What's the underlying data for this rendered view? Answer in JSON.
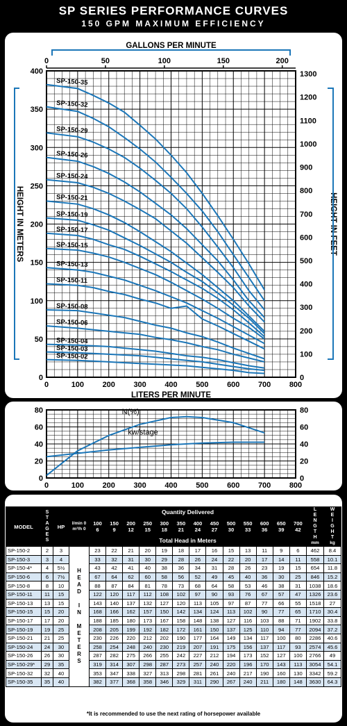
{
  "header": {
    "title": "SP SERIES PERFORMANCE CURVES",
    "subtitle": "150 GPM MAXIMUM EFFICIENCY"
  },
  "chart_data": [
    {
      "type": "line",
      "x_label_bottom": "LITERS PER MINUTE",
      "x_label_top": "GALLONS PER MINUTE",
      "y_label_left": "HEIGHT IN METERS",
      "y_label_right": "HEIGHT IN FEET",
      "x_ticks_bottom": [
        "0",
        "100",
        "200",
        "300",
        "400",
        "500",
        "600",
        "700",
        "800"
      ],
      "x_ticks_top": [
        "0",
        "50",
        "100",
        "150",
        "200"
      ],
      "y_ticks_left": [
        "0",
        "50",
        "100",
        "150",
        "200",
        "250",
        "300",
        "350",
        "400"
      ],
      "y_ticks_right": [
        "0",
        "100",
        "200",
        "300",
        "400",
        "500",
        "600",
        "700",
        "800",
        "900",
        "1000",
        "1100",
        "1200",
        "1300"
      ],
      "xlim": [
        0,
        800
      ],
      "ylim": [
        0,
        400
      ],
      "x": [
        0,
        100,
        150,
        200,
        250,
        300,
        350,
        400,
        450,
        500,
        550,
        600,
        650,
        700
      ],
      "series": [
        {
          "name": "SP-150-35",
          "values": [
            382,
            377,
            368,
            358,
            346,
            329,
            311,
            290,
            267,
            240,
            211,
            180,
            148,
            114
          ]
        },
        {
          "name": "SP-150-32",
          "values": [
            353,
            347,
            338,
            327,
            313,
            298,
            281,
            261,
            240,
            217,
            190,
            160,
            130,
            100
          ]
        },
        {
          "name": "SP-150-29",
          "values": [
            319,
            314,
            307,
            298,
            287,
            273,
            257,
            240,
            220,
            196,
            170,
            143,
            113,
            88
          ]
        },
        {
          "name": "SP-150-26",
          "values": [
            287,
            282,
            275,
            266,
            255,
            242,
            227,
            212,
            194,
            173,
            152,
            127,
            100,
            78
          ]
        },
        {
          "name": "SP-150-24",
          "values": [
            258,
            254,
            248,
            240,
            230,
            219,
            207,
            191,
            175,
            156,
            137,
            117,
            93,
            72
          ]
        },
        {
          "name": "SP-150-21",
          "values": [
            230,
            226,
            220,
            212,
            202,
            190,
            177,
            164,
            149,
            134,
            117,
            100,
            80,
            60
          ]
        },
        {
          "name": "SP-150-19",
          "values": [
            208,
            205,
            199,
            192,
            182,
            172,
            161,
            150,
            137,
            125,
            110,
            94,
            77,
            57
          ]
        },
        {
          "name": "SP-150-17",
          "values": [
            188,
            185,
            180,
            173,
            167,
            158,
            148,
            138,
            127,
            116,
            103,
            88,
            71,
            53
          ]
        },
        {
          "name": "SP-150-15",
          "values": [
            168,
            166,
            162,
            157,
            150,
            142,
            134,
            124,
            113,
            102,
            90,
            77,
            65,
            50
          ]
        },
        {
          "name": "SP-150-13",
          "values": [
            143,
            140,
            137,
            132,
            127,
            120,
            113,
            105,
            97,
            87,
            77,
            66,
            55,
            44
          ]
        },
        {
          "name": "SP-150-11",
          "values": [
            122,
            120,
            117,
            112,
            108,
            102,
            97,
            90,
            93,
            76,
            67,
            57,
            47,
            37
          ]
        },
        {
          "name": "SP-150-08",
          "values": [
            88,
            87,
            84,
            81,
            78,
            73,
            68,
            64,
            58,
            53,
            46,
            38,
            31,
            24
          ]
        },
        {
          "name": "SP-150-06",
          "values": [
            67,
            64,
            62,
            60,
            58,
            56,
            52,
            49,
            45,
            40,
            36,
            30,
            25,
            20
          ]
        },
        {
          "name": "SP-150-04",
          "values": [
            43,
            42,
            41,
            40,
            38,
            36,
            34,
            31,
            28,
            26,
            23,
            19,
            15,
            12
          ]
        },
        {
          "name": "SP-150-03",
          "values": [
            33,
            32,
            31,
            30,
            29,
            28,
            26,
            24,
            22,
            20,
            17,
            14,
            11,
            9
          ]
        },
        {
          "name": "SP-150-02",
          "values": [
            23,
            22,
            21,
            20,
            19,
            18,
            17,
            16,
            15,
            13,
            11,
            9,
            6,
            5
          ]
        }
      ]
    },
    {
      "type": "line",
      "x_ticks": [
        "0",
        "100",
        "200",
        "300",
        "400",
        "500",
        "600",
        "700",
        "800"
      ],
      "y_ticks_left": [
        "0",
        "20",
        "40",
        "60",
        "80"
      ],
      "y_ticks_right": [
        "0",
        "20",
        "40",
        "60",
        "80"
      ],
      "xlim": [
        0,
        800
      ],
      "ylim": [
        0,
        80
      ],
      "series": [
        {
          "name": "N(%)",
          "x": [
            0,
            100,
            200,
            300,
            400,
            450,
            500,
            600,
            700
          ],
          "values": [
            3,
            32,
            50,
            63,
            71,
            72,
            71,
            65,
            53
          ]
        },
        {
          "name": "kw/stage",
          "x": [
            0,
            100,
            200,
            300,
            400,
            500,
            600,
            700
          ],
          "values": [
            25,
            29,
            33,
            36,
            39,
            41,
            42,
            42
          ]
        }
      ]
    },
    {
      "type": "table",
      "headers": {
        "model": "MODEL",
        "stages": "STAGES",
        "hp": "HP",
        "quantity": "Quantity Delivered",
        "unit1": "l/min 0",
        "unit2": "m³/h 0",
        "lpm": [
          "100",
          "150",
          "200",
          "250",
          "300",
          "350",
          "400",
          "450",
          "500",
          "550",
          "600",
          "650",
          "700"
        ],
        "m3h": [
          "6",
          "9",
          "12",
          "15",
          "18",
          "21",
          "24",
          "27",
          "30",
          "33",
          "36",
          "39",
          "42"
        ],
        "total_head": "Total Head in Meters",
        "length": "LENGTH",
        "length_unit": "mm",
        "weight": "WEIGHT",
        "weight_unit": "kg",
        "head_in_meters_vertical": "HEAD IN METERS"
      },
      "rows": [
        {
          "model": "SP-150-2",
          "stages": "2",
          "hp": "3",
          "heads": [
            "23",
            "22",
            "21",
            "20",
            "19",
            "18",
            "17",
            "16",
            "15",
            "13",
            "11",
            "9",
            "6"
          ],
          "length": "462",
          "weight": "8.4"
        },
        {
          "model": "SP-150-3",
          "stages": "3",
          "hp": "4",
          "heads": [
            "33",
            "32",
            "31",
            "30",
            "29",
            "28",
            "26",
            "24",
            "22",
            "20",
            "17",
            "14",
            "11"
          ],
          "length": "558",
          "weight": "10.1"
        },
        {
          "model": "SP-150-4*",
          "stages": "4",
          "hp": "5½",
          "heads": [
            "43",
            "42",
            "41",
            "40",
            "38",
            "36",
            "34",
            "31",
            "28",
            "26",
            "23",
            "19",
            "15"
          ],
          "length": "654",
          "weight": "11.8"
        },
        {
          "model": "SP-150-6",
          "stages": "6",
          "hp": "7½",
          "heads": [
            "67",
            "64",
            "62",
            "60",
            "58",
            "56",
            "52",
            "49",
            "45",
            "40",
            "36",
            "30",
            "25"
          ],
          "length": "846",
          "weight": "15.2"
        },
        {
          "model": "SP-150-8",
          "stages": "8",
          "hp": "10",
          "heads": [
            "88",
            "87",
            "84",
            "81",
            "78",
            "73",
            "68",
            "64",
            "58",
            "53",
            "46",
            "38",
            "31"
          ],
          "length": "1038",
          "weight": "18.6"
        },
        {
          "model": "SP-150-11",
          "stages": "11",
          "hp": "15",
          "heads": [
            "122",
            "120",
            "117",
            "112",
            "108",
            "102",
            "97",
            "90",
            "93",
            "76",
            "67",
            "57",
            "47"
          ],
          "length": "1326",
          "weight": "23.6"
        },
        {
          "model": "SP-150-13",
          "stages": "13",
          "hp": "15",
          "heads": [
            "143",
            "140",
            "137",
            "132",
            "127",
            "120",
            "113",
            "105",
            "97",
            "87",
            "77",
            "66",
            "55"
          ],
          "length": "1518",
          "weight": "27"
        },
        {
          "model": "SP-150-15",
          "stages": "15",
          "hp": "20",
          "heads": [
            "168",
            "166",
            "162",
            "157",
            "150",
            "142",
            "134",
            "124",
            "113",
            "102",
            "90",
            "77",
            "65"
          ],
          "length": "1710",
          "weight": "30.4"
        },
        {
          "model": "SP-150-17",
          "stages": "17",
          "hp": "20",
          "heads": [
            "188",
            "185",
            "180",
            "173",
            "167",
            "158",
            "148",
            "138",
            "127",
            "116",
            "103",
            "88",
            "71"
          ],
          "length": "1902",
          "weight": "33.8"
        },
        {
          "model": "SP-150-19",
          "stages": "19",
          "hp": "25",
          "heads": [
            "208",
            "205",
            "199",
            "192",
            "182",
            "172",
            "161",
            "150",
            "137",
            "125",
            "110",
            "94",
            "77"
          ],
          "length": "2094",
          "weight": "37.2"
        },
        {
          "model": "SP-150-21",
          "stages": "21",
          "hp": "25",
          "heads": [
            "230",
            "226",
            "220",
            "212",
            "202",
            "190",
            "177",
            "164",
            "149",
            "134",
            "117",
            "100",
            "80"
          ],
          "length": "2286",
          "weight": "40.6"
        },
        {
          "model": "SP-150-24",
          "stages": "24",
          "hp": "30",
          "heads": [
            "258",
            "254",
            "248",
            "240",
            "230",
            "219",
            "207",
            "191",
            "175",
            "156",
            "137",
            "117",
            "93"
          ],
          "length": "2574",
          "weight": "45.6"
        },
        {
          "model": "SP-150-26",
          "stages": "26",
          "hp": "30",
          "heads": [
            "287",
            "282",
            "275",
            "266",
            "255",
            "242",
            "227",
            "212",
            "194",
            "173",
            "152",
            "127",
            "100"
          ],
          "length": "2766",
          "weight": "49"
        },
        {
          "model": "SP-150-29*",
          "stages": "29",
          "hp": "35",
          "heads": [
            "319",
            "314",
            "307",
            "298",
            "287",
            "273",
            "257",
            "240",
            "220",
            "196",
            "170",
            "143",
            "113"
          ],
          "length": "3054",
          "weight": "54.1"
        },
        {
          "model": "SP-150-32",
          "stages": "32",
          "hp": "40",
          "heads": [
            "353",
            "347",
            "338",
            "327",
            "313",
            "298",
            "281",
            "261",
            "240",
            "217",
            "190",
            "160",
            "130"
          ],
          "length": "3342",
          "weight": "59.2"
        },
        {
          "model": "SP-150-35",
          "stages": "35",
          "hp": "40",
          "heads": [
            "382",
            "377",
            "368",
            "358",
            "346",
            "329",
            "311",
            "290",
            "267",
            "240",
            "211",
            "180",
            "148"
          ],
          "length": "3630",
          "weight": "64.3"
        }
      ],
      "footnote": "*It is recommended to use the next rating of horsepower available"
    }
  ],
  "colors": {
    "curve": "#1b76b8",
    "grid": "#000000",
    "background": "#000000",
    "panel": "#ffffff",
    "row_alt": "#d8e6f3"
  }
}
